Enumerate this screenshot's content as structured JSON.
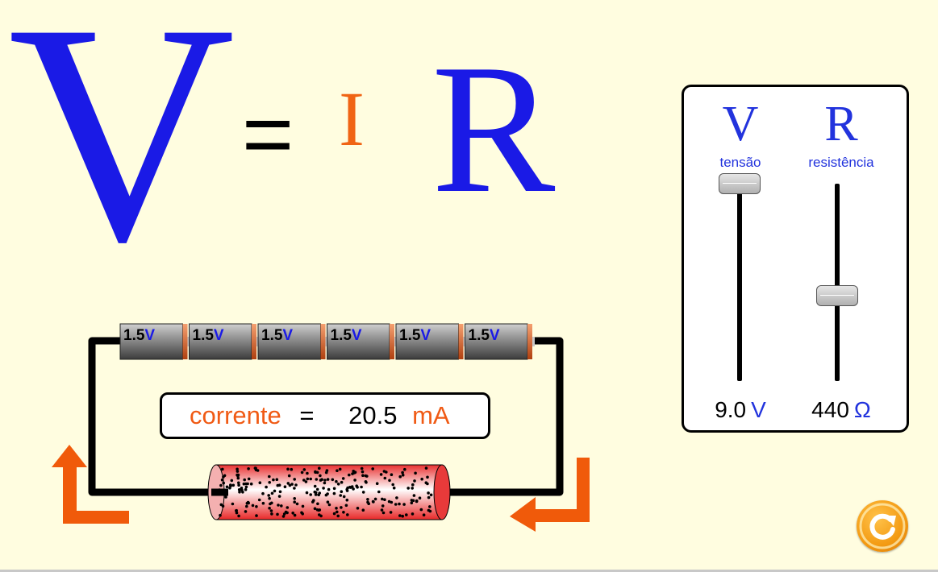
{
  "colors": {
    "voltage_blue": "#1a1ae6",
    "current_orange": "#f06414",
    "resistance_blue": "#1a1ae6",
    "background": "#fffde0",
    "arrow_orange": "#f05a0a",
    "resistor_red": "#f03c3c"
  },
  "equation": {
    "v": "V",
    "equals": "=",
    "i": "I",
    "r": "R"
  },
  "battery": {
    "count": 6,
    "labels": [
      "1.5",
      "1.5",
      "1.5",
      "1.5",
      "1.5",
      "1.5"
    ],
    "unit": "V"
  },
  "current_display": {
    "label": "corrente",
    "equals": "=",
    "value": "20.5",
    "unit": "mA"
  },
  "sliders": {
    "voltage": {
      "symbol": "V",
      "caption": "tensão",
      "value": "9.0",
      "unit": "V",
      "min": 0.1,
      "max": 9.0,
      "current": 9.0
    },
    "resistance": {
      "symbol": "R",
      "caption": "resistência",
      "value": "440",
      "unit": "Ω",
      "min": 10,
      "max": 1000,
      "current": 440
    }
  },
  "icons": {
    "reset": "reset-icon",
    "current_arrow_left": "arrow-up-icon",
    "current_arrow_right": "arrow-left-icon"
  }
}
